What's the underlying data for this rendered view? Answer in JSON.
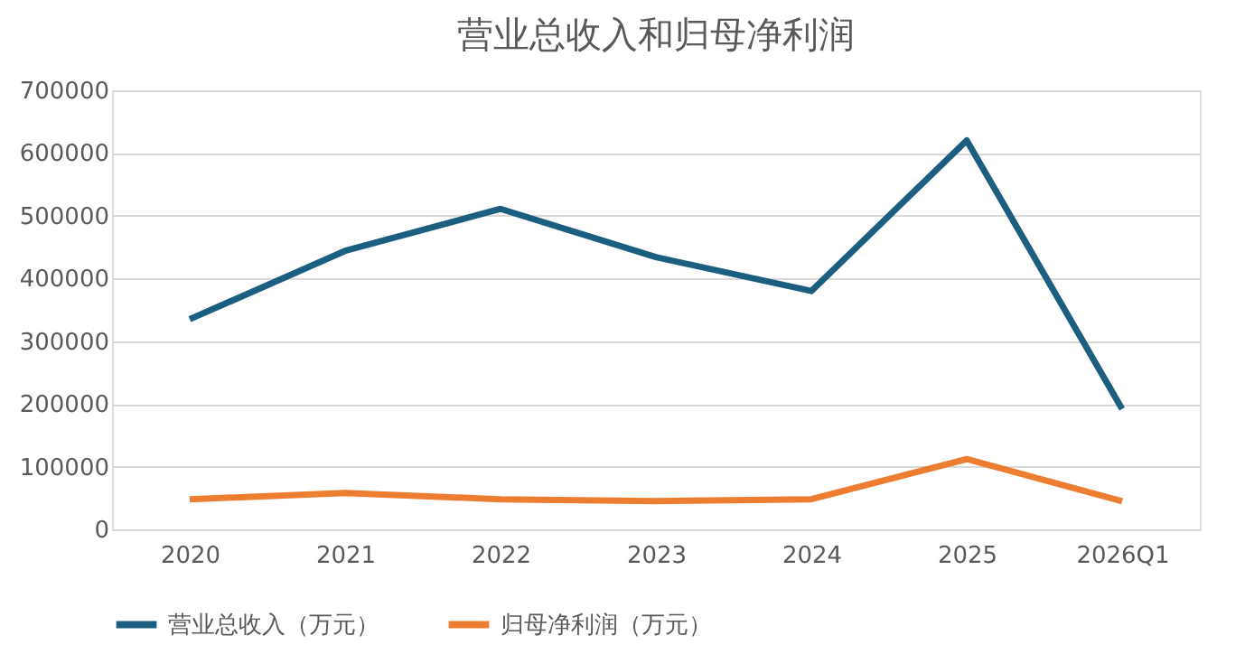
{
  "chart_data": {
    "type": "line",
    "title": "营业总收入和归母净利润",
    "categories": [
      "2020",
      "2021",
      "2022",
      "2023",
      "2024",
      "2025",
      "2026Q1"
    ],
    "series": [
      {
        "name": "营业总收入（万元）",
        "color": "#1b5e80",
        "values": [
          335000,
          444000,
          511000,
          434000,
          380000,
          620000,
          192000
        ]
      },
      {
        "name": "归母净利润（万元）",
        "color": "#ed7d31",
        "values": [
          48000,
          58000,
          48000,
          45000,
          48000,
          112000,
          45000
        ]
      }
    ],
    "ylim": [
      0,
      700000
    ],
    "yticks": [
      0,
      100000,
      200000,
      300000,
      400000,
      500000,
      600000,
      700000
    ],
    "grid": "y",
    "legend": "bottom",
    "marker": "none",
    "line_style": "solid"
  }
}
